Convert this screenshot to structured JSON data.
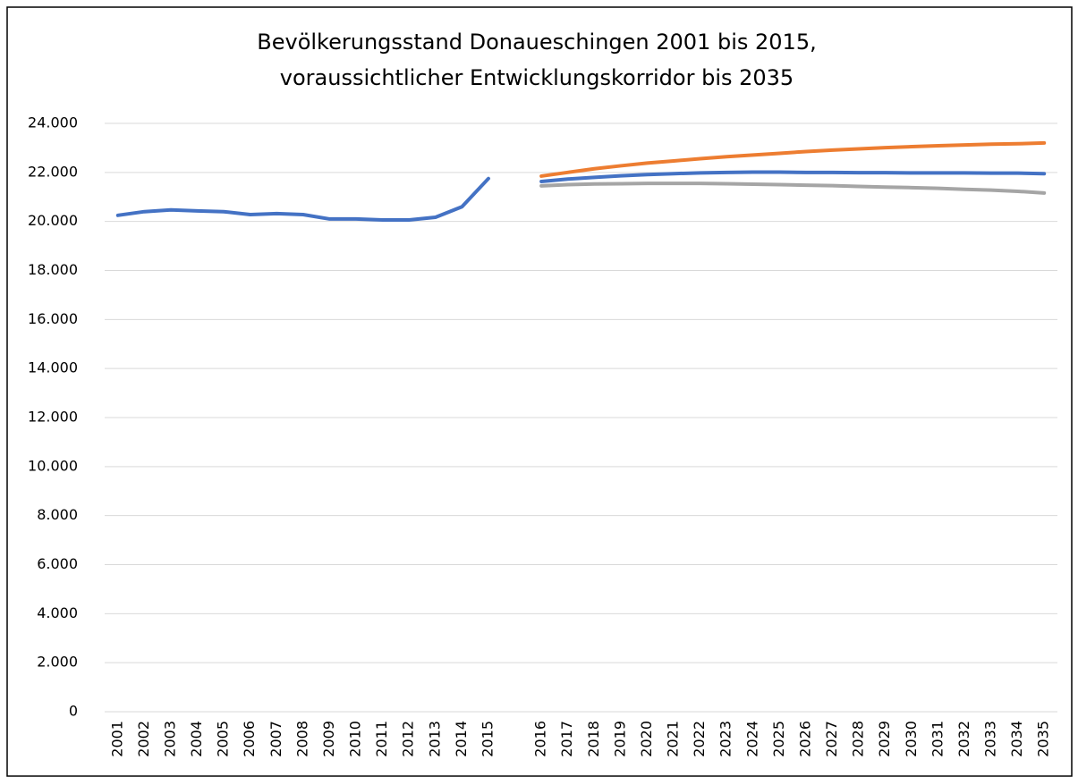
{
  "chart_data": {
    "type": "line",
    "title": [
      "Bevölkerungsstand Donaueschingen 2001 bis 2015,",
      "voraussichtlicher Entwicklungskorridor bis 2035"
    ],
    "categories": [
      "2001",
      "2002",
      "2003",
      "2004",
      "2005",
      "2006",
      "2007",
      "2008",
      "2009",
      "2010",
      "2011",
      "2012",
      "2013",
      "2014",
      "2015",
      null,
      "2016",
      "2017",
      "2018",
      "2019",
      "2020",
      "2021",
      "2022",
      "2023",
      "2024",
      "2025",
      "2026",
      "2027",
      "2028",
      "2029",
      "2030",
      "2031",
      "2032",
      "2033",
      "2034",
      "2035"
    ],
    "series": [
      {
        "color": "#4472c4",
        "values": [
          20250,
          20400,
          20470,
          20430,
          20400,
          20280,
          20320,
          20280,
          20100,
          20100,
          20060,
          20060,
          20170,
          20600,
          21750,
          null,
          null,
          null,
          null,
          null,
          null,
          null,
          null,
          null,
          null,
          null,
          null,
          null,
          null,
          null,
          null,
          null,
          null,
          null,
          null,
          null
        ]
      },
      {
        "color": "#ed7d31",
        "values": [
          null,
          null,
          null,
          null,
          null,
          null,
          null,
          null,
          null,
          null,
          null,
          null,
          null,
          null,
          null,
          null,
          21850,
          22000,
          22150,
          22270,
          22380,
          22470,
          22560,
          22640,
          22710,
          22780,
          22850,
          22910,
          22960,
          23010,
          23050,
          23090,
          23120,
          23150,
          23170,
          23200
        ]
      },
      {
        "color": "#4472c4",
        "values": [
          null,
          null,
          null,
          null,
          null,
          null,
          null,
          null,
          null,
          null,
          null,
          null,
          null,
          null,
          null,
          null,
          21630,
          21730,
          21800,
          21860,
          21910,
          21950,
          21980,
          22000,
          22010,
          22010,
          22000,
          22000,
          21990,
          21990,
          21980,
          21980,
          21980,
          21970,
          21970,
          21950
        ]
      },
      {
        "color": "#a5a5a5",
        "values": [
          null,
          null,
          null,
          null,
          null,
          null,
          null,
          null,
          null,
          null,
          null,
          null,
          null,
          null,
          null,
          null,
          21450,
          21500,
          21530,
          21540,
          21550,
          21550,
          21550,
          21540,
          21520,
          21500,
          21480,
          21460,
          21430,
          21400,
          21380,
          21350,
          21310,
          21280,
          21230,
          21160
        ]
      }
    ],
    "ylim": [
      0,
      24000
    ],
    "yticks": [
      0,
      {
        "value": 2000,
        "label": "2.000"
      },
      {
        "value": 4000,
        "label": "4.000"
      },
      {
        "value": 6000,
        "label": "6.000"
      },
      {
        "value": 8000,
        "label": "8.000"
      },
      {
        "value": 10000,
        "label": "10.000"
      },
      {
        "value": 12000,
        "label": "12.000"
      },
      {
        "value": 14000,
        "label": "14.000"
      },
      {
        "value": 16000,
        "label": "16.000"
      },
      {
        "value": 18000,
        "label": "18.000"
      },
      {
        "value": 20000,
        "label": "20.000"
      },
      {
        "value": 22000,
        "label": "22.000"
      },
      {
        "value": 24000,
        "label": "24.000"
      }
    ],
    "grid": true
  }
}
